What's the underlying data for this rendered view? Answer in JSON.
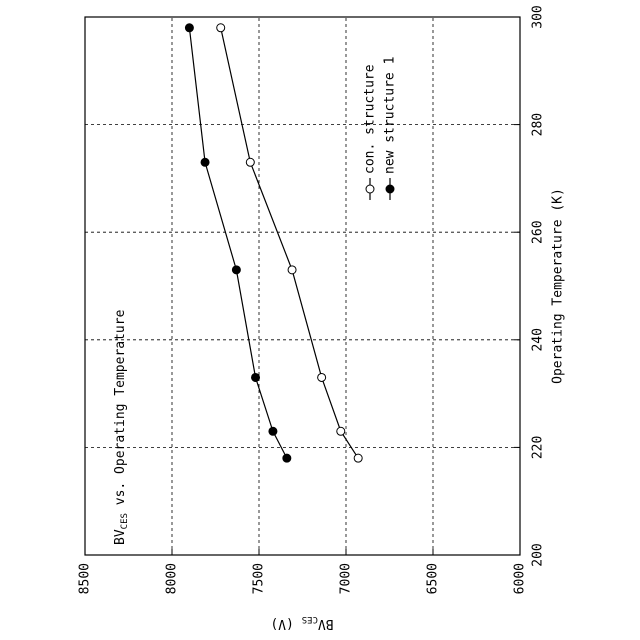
{
  "chart_data": {
    "type": "line",
    "title": [
      "BV",
      "CES",
      " vs. Operating Temperature"
    ],
    "x_label": "Operating Temperature  (K)",
    "y_label": [
      "BV",
      "CES",
      " (V)"
    ],
    "xlim": [
      200,
      300
    ],
    "xticks": [
      200,
      220,
      240,
      260,
      280,
      300
    ],
    "ylim": [
      6000,
      8500
    ],
    "yticks": [
      6000,
      6500,
      7000,
      7500,
      8000,
      8500
    ],
    "grid": true,
    "legend": "lower right",
    "series": [
      {
        "name": "con. structure",
        "color": "#000000",
        "marker": "open-circle",
        "x": [
          218,
          223,
          233,
          253,
          273,
          298
        ],
        "values": [
          6930,
          7030,
          7140,
          7310,
          7550,
          7720
        ]
      },
      {
        "name": "new structure 1",
        "color": "#000000",
        "marker": "filled-circle",
        "x": [
          218,
          223,
          233,
          253,
          273,
          298
        ],
        "values": [
          7340,
          7420,
          7520,
          7630,
          7810,
          7900
        ]
      }
    ]
  }
}
